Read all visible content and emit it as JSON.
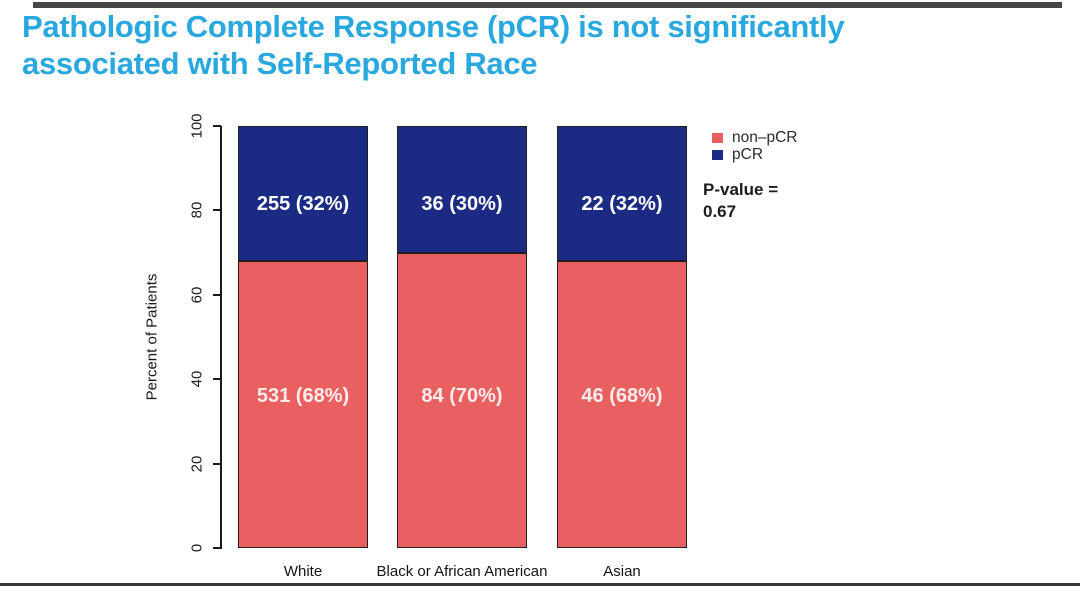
{
  "title": {
    "line1": "Pathologic Complete Response (pCR) is not significantly",
    "line2": "associated with Self-Reported Race"
  },
  "colors": {
    "title_accent": "#29A8E0",
    "non_pcr": "#E96060",
    "pcr": "#1B2B84",
    "axis_text": "#1a1a1a"
  },
  "chart_data": {
    "type": "bar",
    "stacked": true,
    "categories": [
      "White",
      "Black or African American",
      "Asian"
    ],
    "series": [
      {
        "name": "non–pCR",
        "color": "#E96060",
        "values": [
          68,
          70,
          68
        ],
        "counts": [
          531,
          84,
          46
        ],
        "labels": [
          "531 (68%)",
          "84 (70%)",
          "46 (68%)"
        ]
      },
      {
        "name": "pCR",
        "color": "#1B2B84",
        "values": [
          32,
          30,
          32
        ],
        "counts": [
          255,
          36,
          22
        ],
        "labels": [
          "255 (32%)",
          "36 (30%)",
          "22 (32%)"
        ]
      }
    ],
    "title": "",
    "xlabel": "",
    "ylabel": "Percent of Patients",
    "ylim": [
      0,
      100
    ],
    "yticks": [
      0,
      20,
      40,
      60,
      80,
      100
    ],
    "grid": false,
    "legend_position": "top-right"
  },
  "legend": {
    "items": [
      {
        "label": "non–pCR",
        "color": "#E96060",
        "icon": "square-swatch-icon"
      },
      {
        "label": "pCR",
        "color": "#1B2B84",
        "icon": "square-swatch-icon"
      }
    ]
  },
  "stats": {
    "p_value_label": "P-value =",
    "p_value": "0.67"
  }
}
